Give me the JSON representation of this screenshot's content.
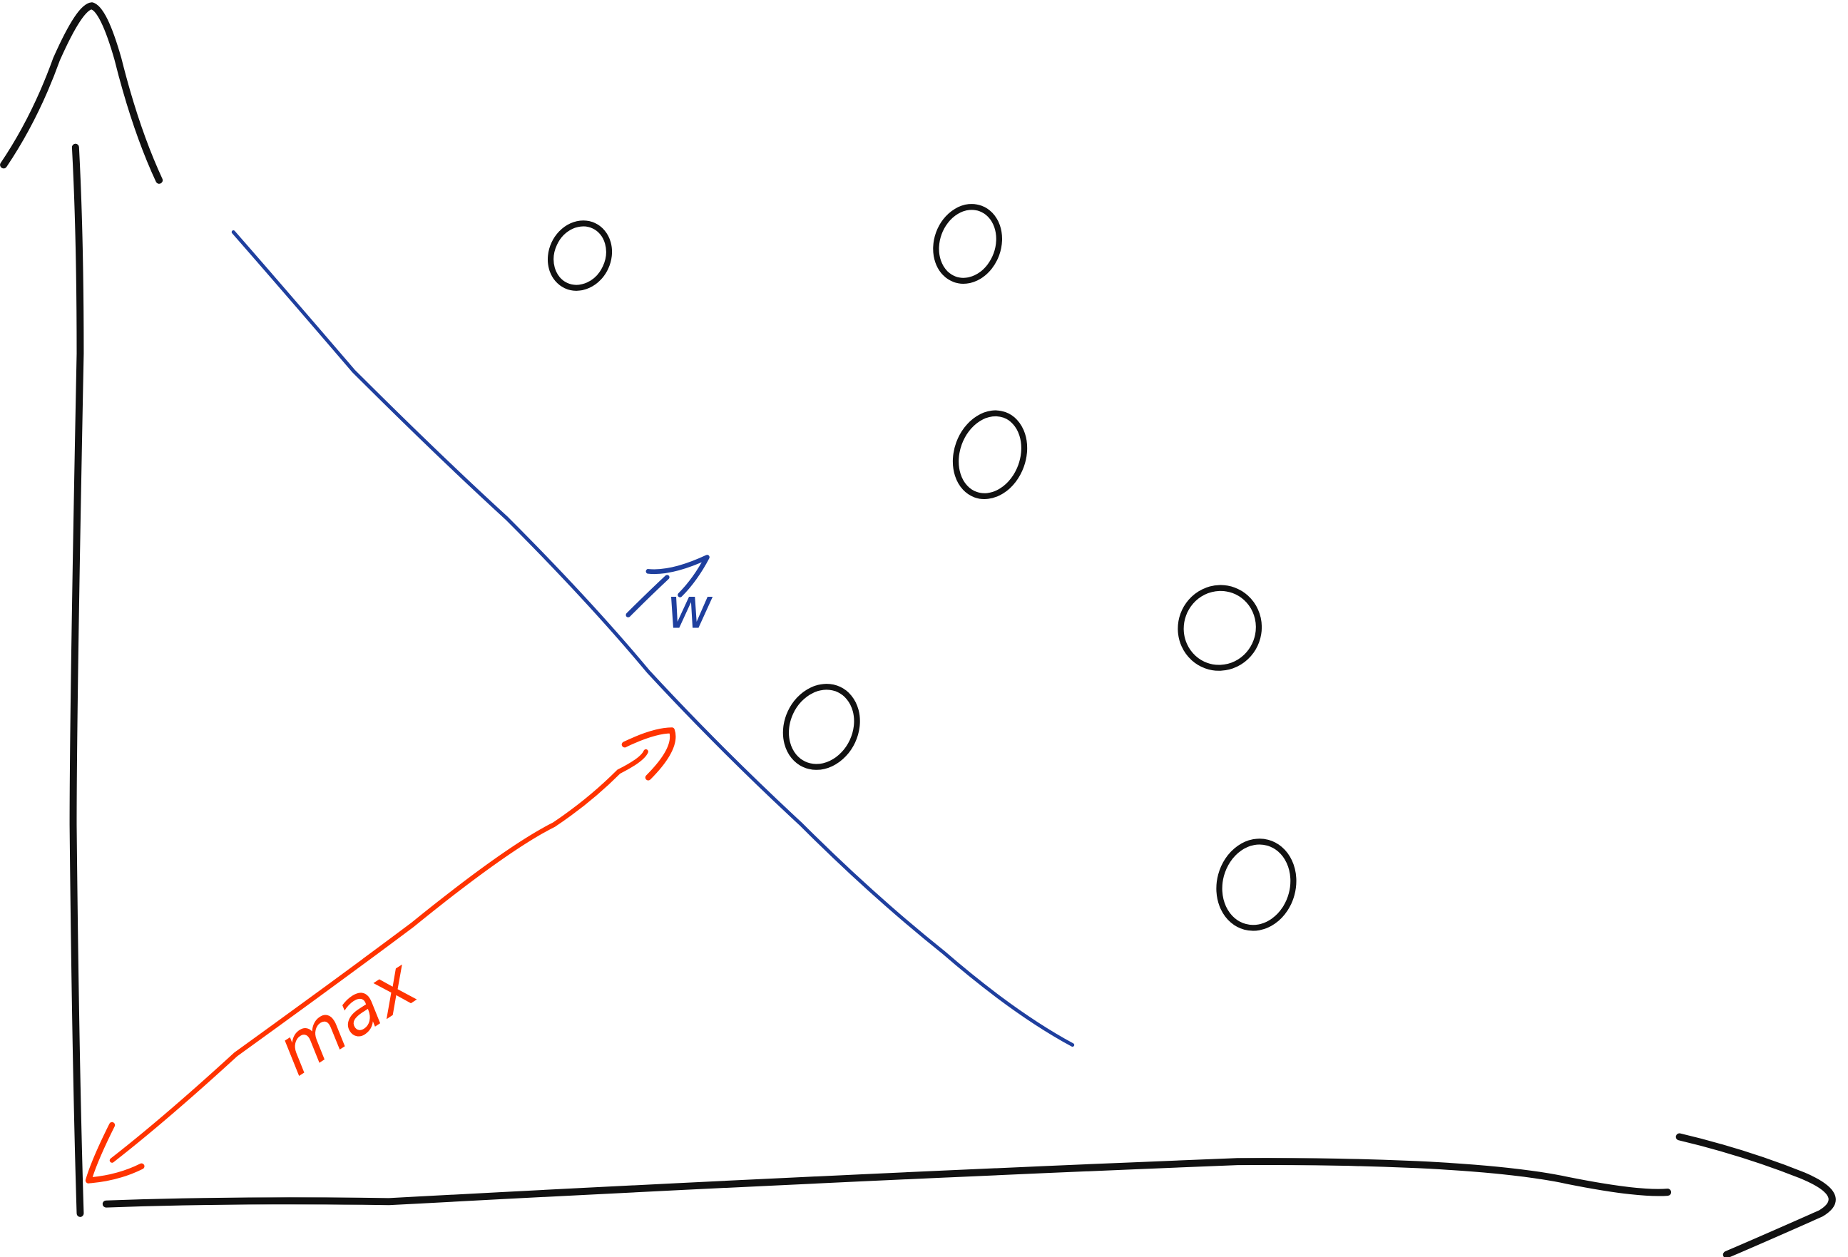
{
  "labels": {
    "normal": "w",
    "margin": "max"
  }
}
